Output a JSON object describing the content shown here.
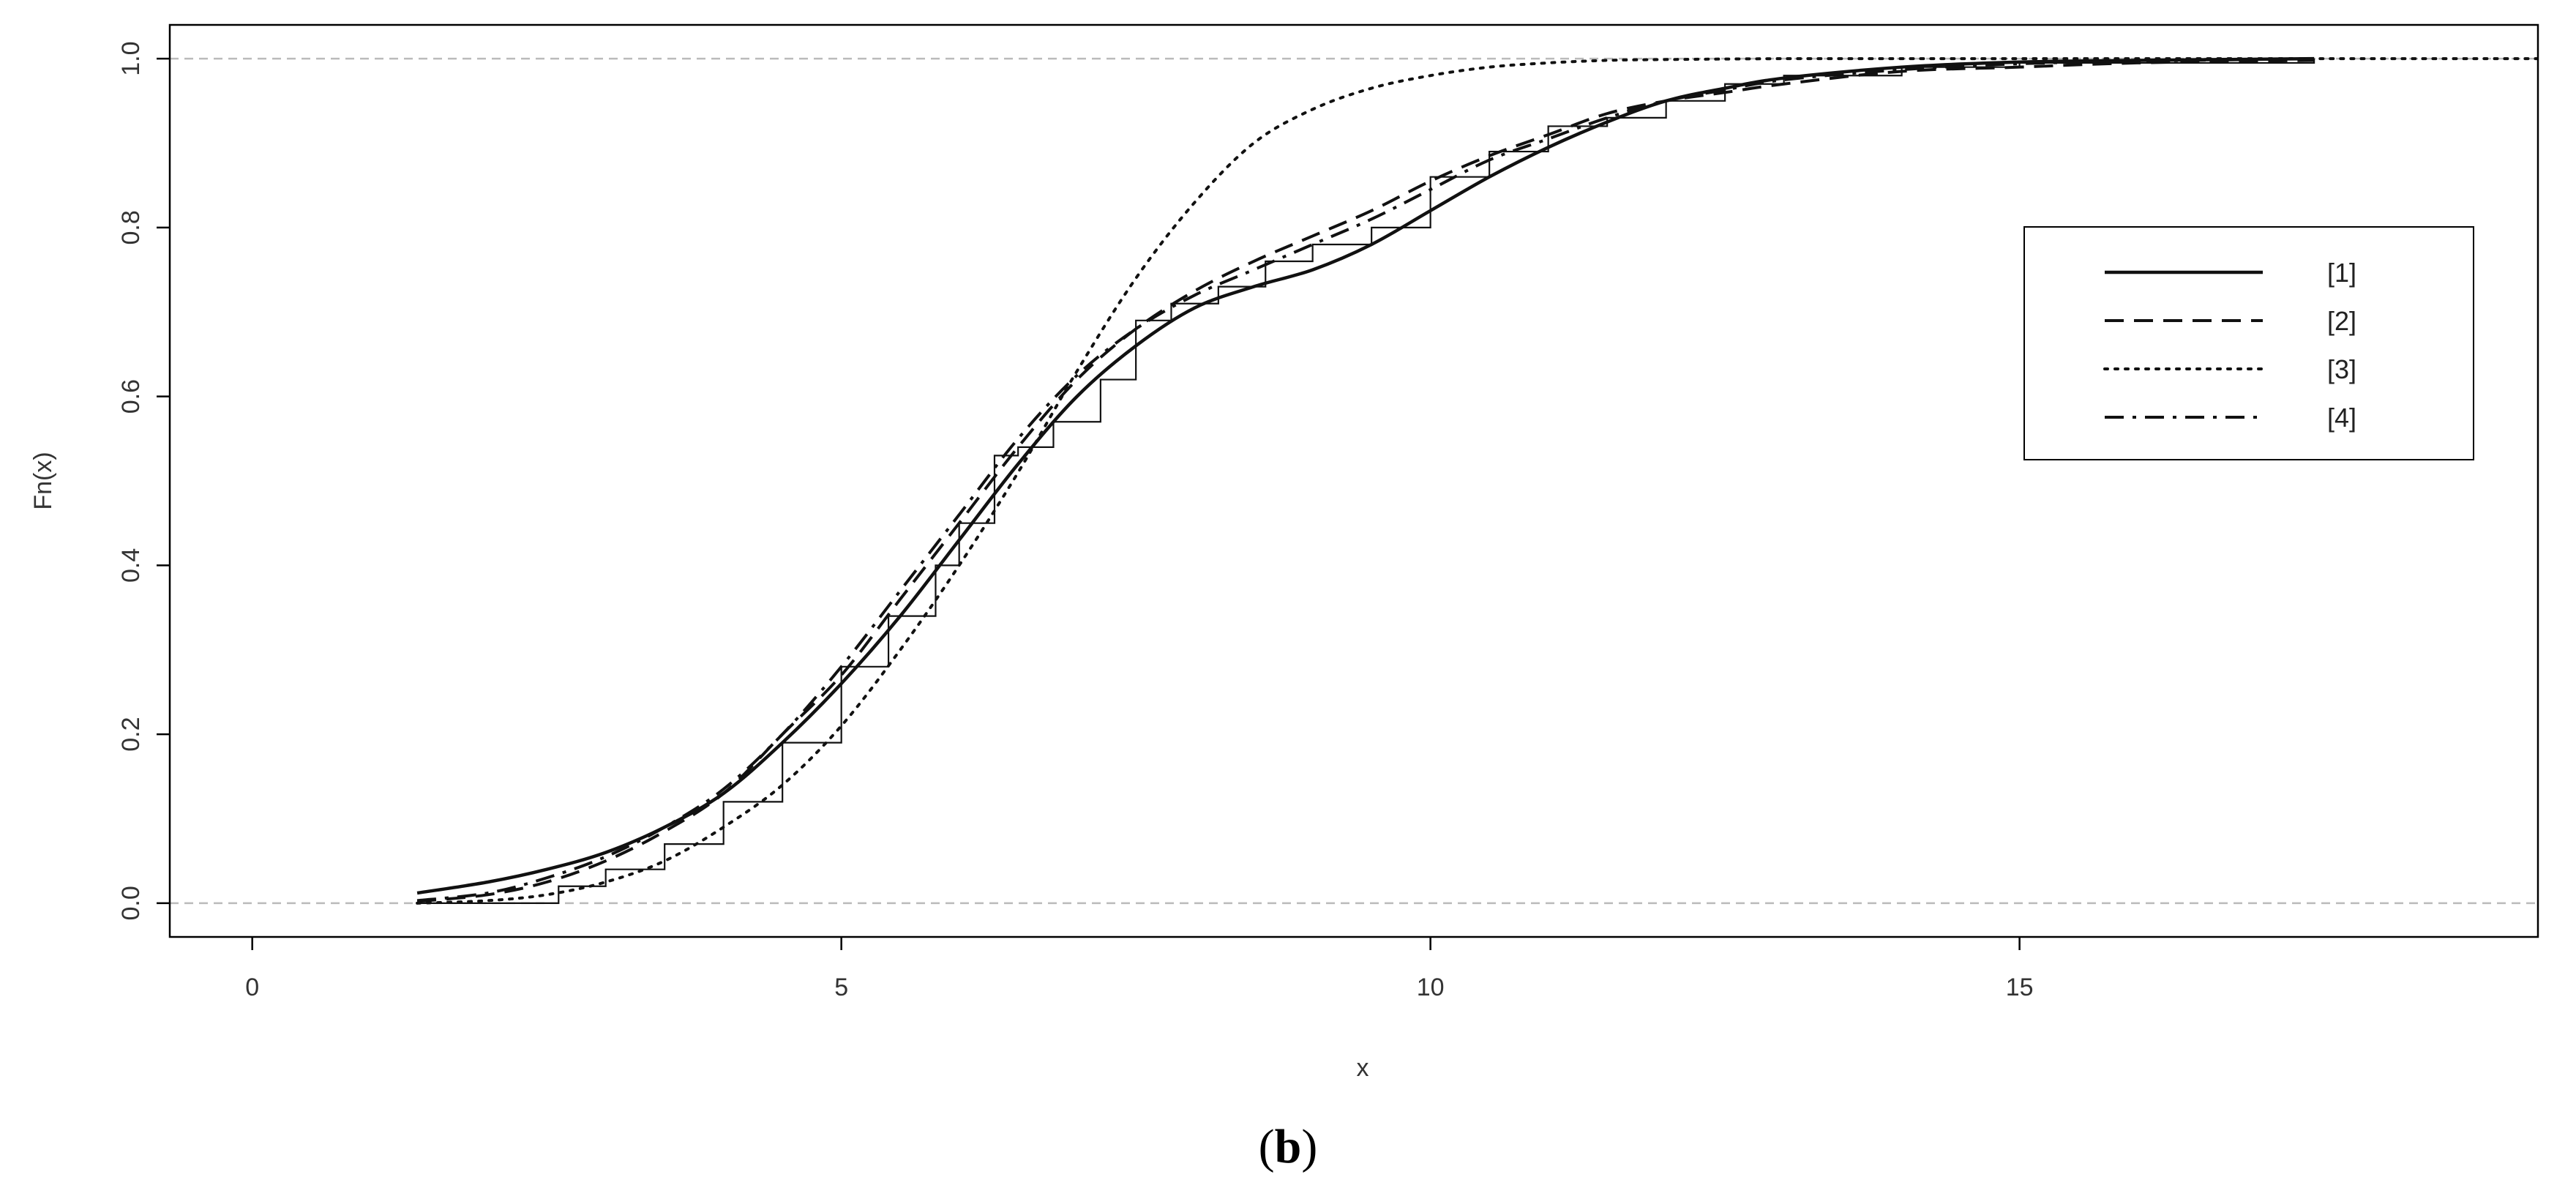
{
  "panel_label": {
    "open": "(",
    "letter": "b",
    "close": ")"
  },
  "chart_data": {
    "type": "line",
    "title": "",
    "xlabel": "x",
    "ylabel": "Fn(x)",
    "xlim": [
      -0.7,
      19.4
    ],
    "ylim": [
      -0.04,
      1.04
    ],
    "xticks": [
      0,
      5,
      10,
      15
    ],
    "yticks": [
      0.0,
      0.2,
      0.4,
      0.6,
      0.8,
      1.0
    ],
    "xtick_labels": [
      "0",
      "5",
      "10",
      "15"
    ],
    "ytick_labels": [
      "0.0",
      "0.2",
      "0.4",
      "0.6",
      "0.8",
      "1.0"
    ],
    "reference_lines": [
      0.0,
      1.0
    ],
    "grid": false,
    "legend_position": "right",
    "colors": {
      "lines": "#111111",
      "reference": "#bbbbbb",
      "frame": "#000000"
    },
    "ecdf": {
      "x": [
        1.4,
        2.6,
        3.0,
        3.5,
        4.0,
        4.5,
        5.0,
        5.4,
        5.8,
        6.0,
        6.3,
        6.5,
        6.8,
        7.2,
        7.5,
        7.8,
        8.2,
        8.6,
        9.0,
        9.5,
        10.0,
        10.5,
        11.0,
        11.5,
        12.0,
        12.5,
        13.0,
        14.0,
        15.0,
        16.0,
        17.5
      ],
      "y": [
        0.0,
        0.02,
        0.04,
        0.07,
        0.12,
        0.19,
        0.28,
        0.34,
        0.4,
        0.45,
        0.53,
        0.54,
        0.57,
        0.62,
        0.69,
        0.71,
        0.73,
        0.76,
        0.78,
        0.8,
        0.86,
        0.89,
        0.92,
        0.93,
        0.95,
        0.97,
        0.98,
        0.99,
        0.995,
        0.995,
        1.0
      ]
    },
    "series": [
      {
        "name": "[1]",
        "dash": "solid",
        "x": [
          1.4,
          2.0,
          2.5,
          3.0,
          3.5,
          4.0,
          4.5,
          5.0,
          5.5,
          6.0,
          6.5,
          7.0,
          7.5,
          8.0,
          8.5,
          9.0,
          9.5,
          10.0,
          10.5,
          11.0,
          11.5,
          12.0,
          12.5,
          13.0,
          14.0,
          15.0,
          16.0,
          17.5
        ],
        "y": [
          0.012,
          0.025,
          0.04,
          0.06,
          0.09,
          0.13,
          0.19,
          0.26,
          0.34,
          0.43,
          0.52,
          0.6,
          0.66,
          0.705,
          0.73,
          0.75,
          0.78,
          0.82,
          0.86,
          0.895,
          0.925,
          0.95,
          0.965,
          0.977,
          0.99,
          0.996,
          0.998,
          1.0
        ]
      },
      {
        "name": "[2]",
        "dash": "dashed",
        "x": [
          1.4,
          2.0,
          2.5,
          3.0,
          3.5,
          4.0,
          4.5,
          5.0,
          5.5,
          6.0,
          6.5,
          7.0,
          7.5,
          8.0,
          8.5,
          9.0,
          9.5,
          10.0,
          10.5,
          11.0,
          11.5,
          12.0,
          12.5,
          13.0,
          14.0,
          15.0,
          16.0,
          17.5
        ],
        "y": [
          0.002,
          0.01,
          0.025,
          0.05,
          0.085,
          0.13,
          0.2,
          0.27,
          0.36,
          0.45,
          0.54,
          0.62,
          0.68,
          0.725,
          0.76,
          0.79,
          0.82,
          0.855,
          0.885,
          0.91,
          0.935,
          0.95,
          0.96,
          0.97,
          0.985,
          0.99,
          0.995,
          0.998
        ]
      },
      {
        "name": "[3]",
        "dash": "dotted",
        "x": [
          1.4,
          2.0,
          2.5,
          3.0,
          3.5,
          4.0,
          4.5,
          5.0,
          5.5,
          6.0,
          6.5,
          7.0,
          7.5,
          8.0,
          8.5,
          9.0,
          9.5,
          10.0,
          10.5,
          11.0,
          11.5,
          12.0,
          13.0,
          14.0,
          15.0,
          17.5,
          19.4
        ],
        "y": [
          0.0,
          0.003,
          0.01,
          0.025,
          0.05,
          0.09,
          0.14,
          0.21,
          0.3,
          0.4,
          0.51,
          0.63,
          0.74,
          0.83,
          0.9,
          0.94,
          0.965,
          0.98,
          0.99,
          0.995,
          0.998,
          0.999,
          1.0,
          1.0,
          1.0,
          1.0,
          1.0
        ]
      },
      {
        "name": "[4]",
        "dash": "dashdot",
        "x": [
          1.4,
          2.0,
          2.5,
          3.0,
          3.5,
          4.0,
          4.5,
          5.0,
          5.5,
          6.0,
          6.5,
          7.0,
          7.5,
          8.0,
          8.5,
          9.0,
          9.5,
          10.0,
          10.5,
          11.0,
          11.5,
          12.0,
          12.5,
          13.0,
          14.0,
          15.0,
          16.0,
          17.5
        ],
        "y": [
          0.003,
          0.012,
          0.03,
          0.055,
          0.09,
          0.135,
          0.2,
          0.28,
          0.37,
          0.46,
          0.55,
          0.625,
          0.68,
          0.72,
          0.75,
          0.78,
          0.81,
          0.845,
          0.88,
          0.905,
          0.93,
          0.95,
          0.963,
          0.975,
          0.987,
          0.994,
          0.997,
          1.0
        ]
      }
    ]
  }
}
